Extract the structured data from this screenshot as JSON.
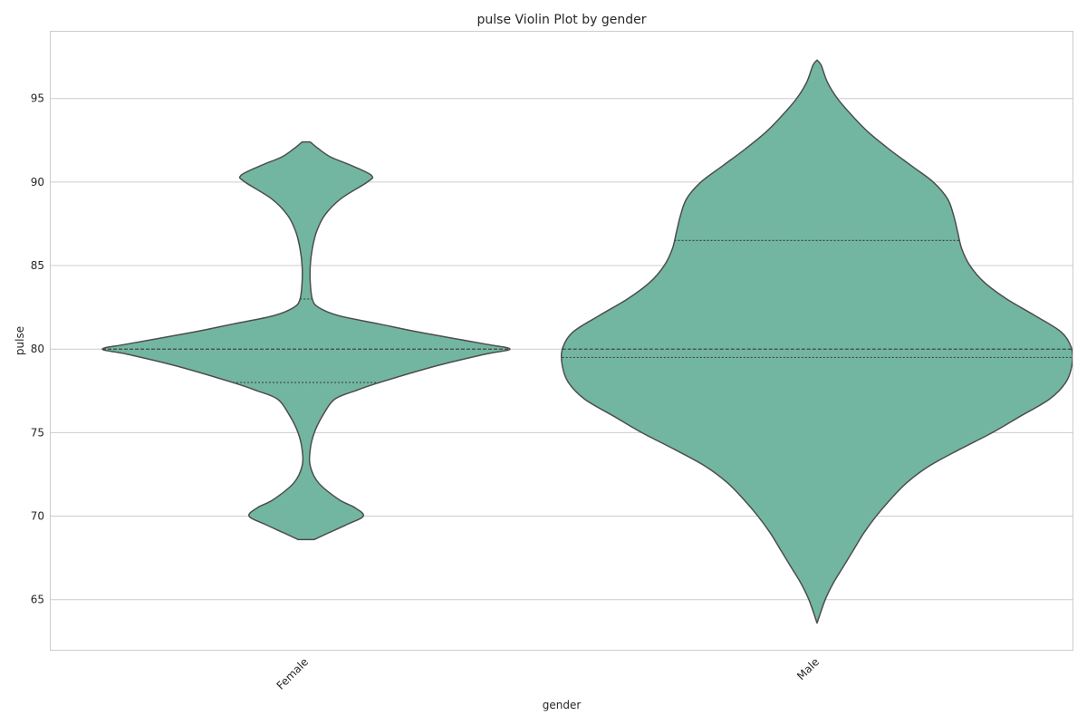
{
  "chart_data": {
    "type": "violin",
    "title": "pulse Violin Plot by gender",
    "xlabel": "gender",
    "ylabel": "pulse",
    "ylim": [
      62,
      99
    ],
    "yticks": [
      65,
      70,
      75,
      80,
      85,
      90,
      95
    ],
    "grid": true,
    "colors": {
      "fill": "#72b6a1",
      "outline": "#4d4d4d"
    },
    "categories": [
      "Female",
      "Male"
    ],
    "series": [
      {
        "category": "Female",
        "q1": 78.0,
        "median": 80.0,
        "q3": 83.0,
        "min": 68.6,
        "max": 92.4,
        "density_profile": [
          [
            68.6,
            0.04
          ],
          [
            69.0,
            0.11
          ],
          [
            69.5,
            0.2
          ],
          [
            70.0,
            0.28
          ],
          [
            70.5,
            0.24
          ],
          [
            71.0,
            0.16
          ],
          [
            72.0,
            0.06
          ],
          [
            73.0,
            0.02
          ],
          [
            74.0,
            0.02
          ],
          [
            75.0,
            0.04
          ],
          [
            76.0,
            0.08
          ],
          [
            77.0,
            0.14
          ],
          [
            77.5,
            0.24
          ],
          [
            78.0,
            0.36
          ],
          [
            79.0,
            0.64
          ],
          [
            79.7,
            0.88
          ],
          [
            80.0,
            1.0
          ],
          [
            80.3,
            0.88
          ],
          [
            81.0,
            0.56
          ],
          [
            81.5,
            0.36
          ],
          [
            82.0,
            0.16
          ],
          [
            82.5,
            0.06
          ],
          [
            83.0,
            0.03
          ],
          [
            84.0,
            0.02
          ],
          [
            85.0,
            0.02
          ],
          [
            86.0,
            0.03
          ],
          [
            87.0,
            0.05
          ],
          [
            88.0,
            0.09
          ],
          [
            89.0,
            0.17
          ],
          [
            90.0,
            0.3
          ],
          [
            90.4,
            0.32
          ],
          [
            91.0,
            0.22
          ],
          [
            91.5,
            0.12
          ],
          [
            92.0,
            0.06
          ],
          [
            92.4,
            0.02
          ]
        ]
      },
      {
        "category": "Male",
        "q1": 79.5,
        "median": 80.0,
        "q3": 86.5,
        "min": 63.6,
        "max": 97.3,
        "density_profile": [
          [
            63.6,
            0.0
          ],
          [
            65.0,
            0.04
          ],
          [
            66.0,
            0.08
          ],
          [
            67.0,
            0.13
          ],
          [
            68.0,
            0.18
          ],
          [
            69.0,
            0.23
          ],
          [
            70.0,
            0.29
          ],
          [
            71.0,
            0.36
          ],
          [
            72.0,
            0.44
          ],
          [
            73.0,
            0.55
          ],
          [
            74.0,
            0.7
          ],
          [
            75.0,
            0.86
          ],
          [
            76.0,
            1.0
          ],
          [
            77.0,
            1.14
          ],
          [
            78.0,
            1.22
          ],
          [
            79.0,
            1.25
          ],
          [
            80.0,
            1.25
          ],
          [
            81.0,
            1.2
          ],
          [
            82.0,
            1.07
          ],
          [
            83.0,
            0.93
          ],
          [
            84.0,
            0.82
          ],
          [
            85.0,
            0.75
          ],
          [
            86.0,
            0.71
          ],
          [
            87.0,
            0.69
          ],
          [
            88.0,
            0.67
          ],
          [
            89.0,
            0.64
          ],
          [
            90.0,
            0.57
          ],
          [
            91.0,
            0.46
          ],
          [
            92.0,
            0.35
          ],
          [
            93.0,
            0.25
          ],
          [
            94.0,
            0.17
          ],
          [
            95.0,
            0.1
          ],
          [
            96.0,
            0.05
          ],
          [
            97.0,
            0.02
          ],
          [
            97.3,
            0.0
          ]
        ]
      }
    ]
  }
}
